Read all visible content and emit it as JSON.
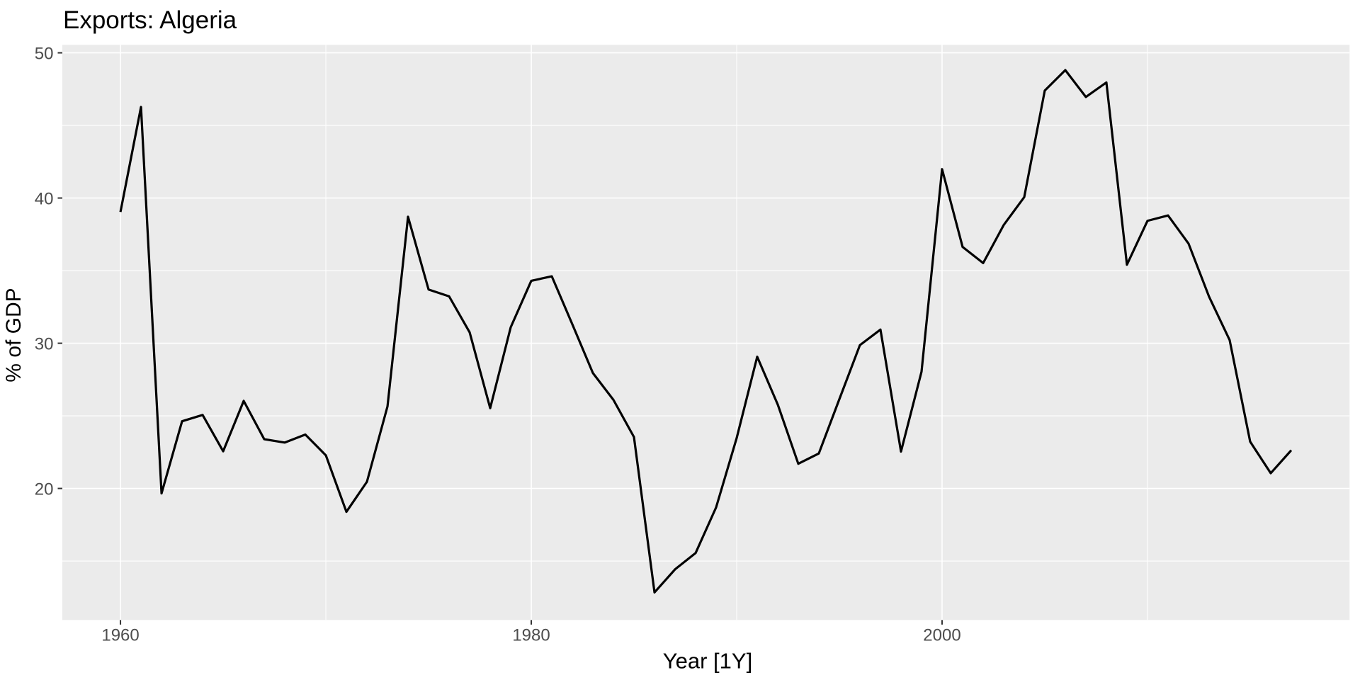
{
  "chart_data": {
    "type": "line",
    "title": "Exports: Algeria",
    "xlabel": "Year [1Y]",
    "ylabel": "% of GDP",
    "legend": "none",
    "grid": "on",
    "years": [
      1960,
      1961,
      1962,
      1963,
      1964,
      1965,
      1966,
      1967,
      1968,
      1969,
      1970,
      1971,
      1972,
      1973,
      1974,
      1975,
      1976,
      1977,
      1978,
      1979,
      1980,
      1981,
      1982,
      1983,
      1984,
      1985,
      1986,
      1987,
      1988,
      1989,
      1990,
      1991,
      1992,
      1993,
      1994,
      1995,
      1996,
      1997,
      1998,
      1999,
      2000,
      2001,
      2002,
      2003,
      2004,
      2005,
      2006,
      2007,
      2008,
      2009,
      2010,
      2011,
      2012,
      2013,
      2014,
      2015,
      2016,
      2017
    ],
    "values": [
      39.04,
      46.27,
      19.66,
      24.63,
      25.06,
      22.56,
      26.03,
      23.39,
      23.16,
      23.71,
      22.28,
      18.39,
      20.46,
      25.65,
      38.71,
      33.7,
      33.23,
      30.75,
      25.53,
      31.1,
      34.3,
      34.61,
      31.3,
      27.95,
      26.1,
      23.54,
      12.84,
      14.43,
      15.55,
      18.7,
      23.47,
      29.07,
      25.78,
      21.7,
      22.41,
      26.15,
      29.87,
      30.94,
      22.54,
      28.04,
      41.99,
      36.63,
      35.52,
      38.14,
      40.06,
      47.4,
      48.81,
      46.96,
      47.96,
      35.41,
      38.43,
      38.8,
      36.86,
      33.2,
      30.22,
      23.22,
      21.05,
      22.63
    ],
    "x_ticks": [
      1960,
      1980,
      2000
    ],
    "x_minor_ticks": [
      1970,
      1990,
      2010
    ],
    "y_ticks": [
      20,
      30,
      40,
      50
    ],
    "y_minor_ticks": [
      15,
      25,
      35,
      45
    ],
    "xlim": [
      1957.17,
      2019.84
    ],
    "ylim": [
      10.94,
      50.55
    ],
    "colors": {
      "panel_bg": "#EBEBEB",
      "grid": "#FFFFFF",
      "line": "#000000",
      "tick_mark": "#333333",
      "tick_label": "#4D4D4D",
      "title_text": "#000000"
    }
  }
}
